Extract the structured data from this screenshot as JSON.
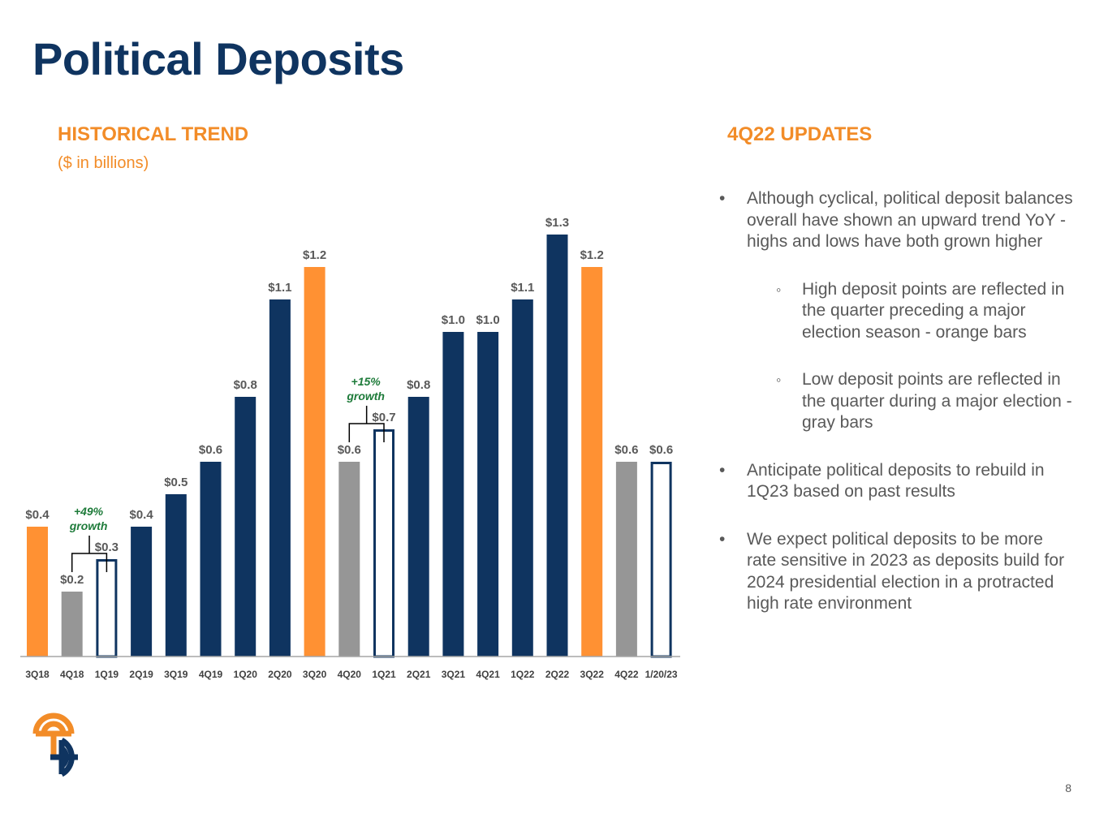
{
  "title": "Political Deposits",
  "left_section": {
    "heading": "HISTORICAL TREND",
    "subheading": "($ in billions)"
  },
  "right_section": {
    "heading": "4Q22 UPDATES",
    "bullets": [
      {
        "level": 1,
        "text": "Although cyclical, political deposit balances overall have shown an upward trend YoY - highs and lows have both grown higher"
      },
      {
        "level": 2,
        "text": "High deposit points are reflected in the quarter preceding a major election season - orange bars"
      },
      {
        "level": 2,
        "text": "Low deposit points are reflected in the quarter during a major election - gray bars"
      },
      {
        "level": 1,
        "text": "Anticipate political deposits to rebuild in 1Q23 based on past results"
      },
      {
        "level": 1,
        "text": "We expect political deposits to be more rate sensitive in 2023 as deposits build for 2024 presidential election in a protracted high rate environment"
      }
    ]
  },
  "page_number": "8",
  "colors": {
    "navy": "#0f3460",
    "orange": "#ff9133",
    "gray": "#969696",
    "green": "#1e7b3a"
  },
  "chart_data": {
    "type": "bar",
    "title": "HISTORICAL TREND",
    "ylabel": "$ in billions",
    "ylim": [
      0,
      1.45
    ],
    "categories": [
      "3Q18",
      "4Q18",
      "1Q19",
      "2Q19",
      "3Q19",
      "4Q19",
      "1Q20",
      "2Q20",
      "3Q20",
      "4Q20",
      "1Q21",
      "2Q21",
      "3Q21",
      "4Q21",
      "1Q22",
      "2Q22",
      "3Q22",
      "4Q22",
      "1/20/23"
    ],
    "values": [
      0.4,
      0.2,
      0.3,
      0.4,
      0.5,
      0.6,
      0.8,
      1.1,
      1.2,
      0.6,
      0.7,
      0.8,
      1.0,
      1.0,
      1.1,
      1.3,
      1.2,
      0.6,
      0.6
    ],
    "labels": [
      "$0.4",
      "$0.2",
      "$0.3",
      "$0.4",
      "$0.5",
      "$0.6",
      "$0.8",
      "$1.1",
      "$1.2",
      "$0.6",
      "$0.7",
      "$0.8",
      "$1.0",
      "$1.0",
      "$1.1",
      "$1.3",
      "$1.2",
      "$0.6",
      "$0.6"
    ],
    "styles": [
      "orange",
      "gray",
      "outline",
      "navy",
      "navy",
      "navy",
      "navy",
      "navy",
      "orange",
      "gray",
      "outline",
      "navy",
      "navy",
      "navy",
      "navy",
      "navy",
      "orange",
      "gray",
      "outline"
    ],
    "annotations": [
      {
        "text_line1": "+49%",
        "text_line2": "growth",
        "from_index": 1,
        "to_index": 2
      },
      {
        "text_line1": "+15%",
        "text_line2": "growth",
        "from_index": 9,
        "to_index": 10
      }
    ]
  }
}
